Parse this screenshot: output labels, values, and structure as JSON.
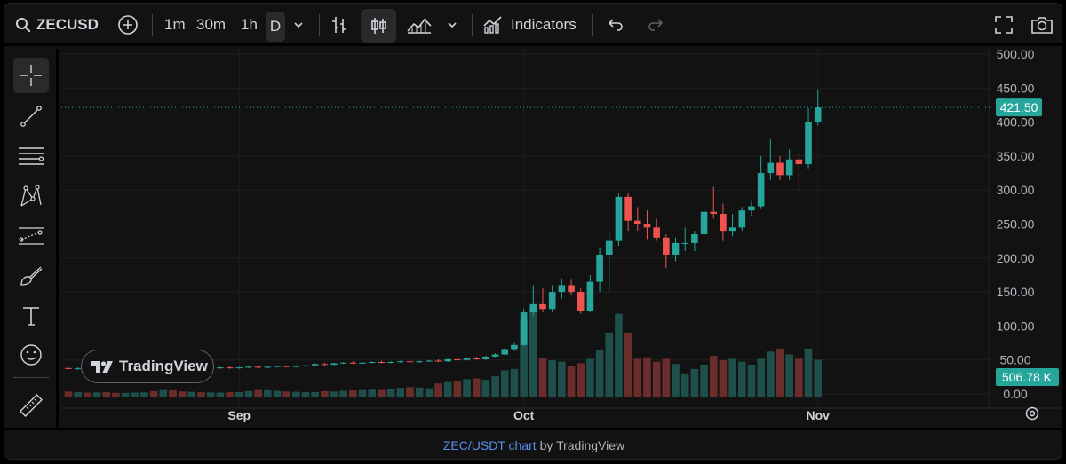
{
  "toolbar": {
    "symbol": "ZECUSD",
    "intervals": [
      "1m",
      "30m",
      "1h",
      "D"
    ],
    "indicators_label": "Indicators"
  },
  "footer": {
    "link_text": "ZEC/USDT chart",
    "by_text": "by TradingView"
  },
  "watermark": {
    "text": "TradingView"
  },
  "chart_data": {
    "type": "candlestick",
    "title": "",
    "x_tick_labels": [
      "Sep",
      "Oct",
      "Nov"
    ],
    "y_tick_labels": [
      "500.00",
      "450.00",
      "400.00",
      "350.00",
      "300.00",
      "250.00",
      "200.00",
      "150.00",
      "100.00",
      "50.00",
      "0.00"
    ],
    "ylim": [
      0,
      500
    ],
    "last_price": "421.50",
    "last_volume": "506.78 K",
    "up_color": "#26a69a",
    "down_color": "#ef5350",
    "grid": true,
    "candles": [
      {
        "date": "Aug 14",
        "o": 38,
        "h": 40,
        "l": 36,
        "c": 37
      },
      {
        "date": "Aug 15",
        "o": 37,
        "h": 39,
        "l": 35,
        "c": 38
      },
      {
        "date": "Aug 16",
        "o": 38,
        "h": 40,
        "l": 36,
        "c": 37
      },
      {
        "date": "Aug 17",
        "o": 37,
        "h": 39,
        "l": 36,
        "c": 38
      },
      {
        "date": "Aug 18",
        "o": 38,
        "h": 40,
        "l": 36,
        "c": 37
      },
      {
        "date": "Aug 19",
        "o": 37,
        "h": 39,
        "l": 35,
        "c": 36
      },
      {
        "date": "Aug 20",
        "o": 36,
        "h": 38,
        "l": 35,
        "c": 37
      },
      {
        "date": "Aug 21",
        "o": 37,
        "h": 39,
        "l": 36,
        "c": 38
      },
      {
        "date": "Aug 22",
        "o": 38,
        "h": 40,
        "l": 37,
        "c": 39
      },
      {
        "date": "Aug 23",
        "o": 39,
        "h": 40,
        "l": 37,
        "c": 38
      },
      {
        "date": "Aug 24",
        "o": 38,
        "h": 40,
        "l": 37,
        "c": 39
      },
      {
        "date": "Aug 25",
        "o": 39,
        "h": 41,
        "l": 37,
        "c": 38
      },
      {
        "date": "Aug 26",
        "o": 38,
        "h": 40,
        "l": 36,
        "c": 37
      },
      {
        "date": "Aug 27",
        "o": 37,
        "h": 39,
        "l": 36,
        "c": 38
      },
      {
        "date": "Aug 28",
        "o": 38,
        "h": 40,
        "l": 36,
        "c": 37
      },
      {
        "date": "Aug 29",
        "o": 37,
        "h": 39,
        "l": 36,
        "c": 38
      },
      {
        "date": "Aug 30",
        "o": 38,
        "h": 40,
        "l": 37,
        "c": 39
      },
      {
        "date": "Aug 31",
        "o": 39,
        "h": 41,
        "l": 37,
        "c": 38
      },
      {
        "date": "Sep 1",
        "o": 38,
        "h": 40,
        "l": 37,
        "c": 39
      },
      {
        "date": "Sep 2",
        "o": 39,
        "h": 41,
        "l": 38,
        "c": 40
      },
      {
        "date": "Sep 3",
        "o": 40,
        "h": 41,
        "l": 38,
        "c": 39
      },
      {
        "date": "Sep 4",
        "o": 39,
        "h": 41,
        "l": 38,
        "c": 40
      },
      {
        "date": "Sep 5",
        "o": 40,
        "h": 42,
        "l": 39,
        "c": 41
      },
      {
        "date": "Sep 6",
        "o": 41,
        "h": 42,
        "l": 39,
        "c": 40
      },
      {
        "date": "Sep 7",
        "o": 40,
        "h": 42,
        "l": 39,
        "c": 41
      },
      {
        "date": "Sep 8",
        "o": 41,
        "h": 43,
        "l": 40,
        "c": 42
      },
      {
        "date": "Sep 9",
        "o": 42,
        "h": 45,
        "l": 41,
        "c": 44
      },
      {
        "date": "Sep 10",
        "o": 44,
        "h": 46,
        "l": 42,
        "c": 43
      },
      {
        "date": "Sep 11",
        "o": 43,
        "h": 46,
        "l": 42,
        "c": 45
      },
      {
        "date": "Sep 12",
        "o": 45,
        "h": 47,
        "l": 44,
        "c": 46
      },
      {
        "date": "Sep 13",
        "o": 46,
        "h": 48,
        "l": 44,
        "c": 45
      },
      {
        "date": "Sep 14",
        "o": 45,
        "h": 47,
        "l": 44,
        "c": 46
      },
      {
        "date": "Sep 15",
        "o": 46,
        "h": 48,
        "l": 45,
        "c": 47
      },
      {
        "date": "Sep 16",
        "o": 47,
        "h": 49,
        "l": 45,
        "c": 46
      },
      {
        "date": "Sep 17",
        "o": 46,
        "h": 48,
        "l": 45,
        "c": 47
      },
      {
        "date": "Sep 18",
        "o": 47,
        "h": 49,
        "l": 46,
        "c": 48
      },
      {
        "date": "Sep 19",
        "o": 48,
        "h": 50,
        "l": 46,
        "c": 47
      },
      {
        "date": "Sep 20",
        "o": 47,
        "h": 49,
        "l": 46,
        "c": 48
      },
      {
        "date": "Sep 21",
        "o": 48,
        "h": 50,
        "l": 47,
        "c": 49
      },
      {
        "date": "Sep 22",
        "o": 49,
        "h": 51,
        "l": 47,
        "c": 48
      },
      {
        "date": "Sep 23",
        "o": 48,
        "h": 52,
        "l": 47,
        "c": 51
      },
      {
        "date": "Sep 24",
        "o": 51,
        "h": 53,
        "l": 49,
        "c": 50
      },
      {
        "date": "Sep 25",
        "o": 50,
        "h": 54,
        "l": 49,
        "c": 53
      },
      {
        "date": "Sep 26",
        "o": 53,
        "h": 55,
        "l": 50,
        "c": 51
      },
      {
        "date": "Sep 27",
        "o": 51,
        "h": 56,
        "l": 50,
        "c": 55
      },
      {
        "date": "Sep 28",
        "o": 55,
        "h": 60,
        "l": 54,
        "c": 58
      },
      {
        "date": "Sep 29",
        "o": 58,
        "h": 68,
        "l": 56,
        "c": 66
      },
      {
        "date": "Sep 30",
        "o": 66,
        "h": 75,
        "l": 63,
        "c": 72
      },
      {
        "date": "Oct 1",
        "o": 72,
        "h": 125,
        "l": 70,
        "c": 120
      },
      {
        "date": "Oct 2",
        "o": 120,
        "h": 160,
        "l": 115,
        "c": 132
      },
      {
        "date": "Oct 3",
        "o": 132,
        "h": 155,
        "l": 120,
        "c": 125
      },
      {
        "date": "Oct 4",
        "o": 125,
        "h": 160,
        "l": 120,
        "c": 150
      },
      {
        "date": "Oct 5",
        "o": 150,
        "h": 170,
        "l": 140,
        "c": 160
      },
      {
        "date": "Oct 6",
        "o": 160,
        "h": 168,
        "l": 145,
        "c": 150
      },
      {
        "date": "Oct 7",
        "o": 150,
        "h": 155,
        "l": 118,
        "c": 122
      },
      {
        "date": "Oct 8",
        "o": 122,
        "h": 175,
        "l": 120,
        "c": 165
      },
      {
        "date": "Oct 9",
        "o": 165,
        "h": 215,
        "l": 150,
        "c": 205
      },
      {
        "date": "Oct 10",
        "o": 205,
        "h": 240,
        "l": 150,
        "c": 225
      },
      {
        "date": "Oct 11",
        "o": 225,
        "h": 295,
        "l": 218,
        "c": 290
      },
      {
        "date": "Oct 12",
        "o": 290,
        "h": 295,
        "l": 240,
        "c": 255
      },
      {
        "date": "Oct 13",
        "o": 255,
        "h": 275,
        "l": 240,
        "c": 250
      },
      {
        "date": "Oct 14",
        "o": 250,
        "h": 270,
        "l": 228,
        "c": 245
      },
      {
        "date": "Oct 15",
        "o": 245,
        "h": 258,
        "l": 225,
        "c": 230
      },
      {
        "date": "Oct 16",
        "o": 230,
        "h": 235,
        "l": 185,
        "c": 205
      },
      {
        "date": "Oct 17",
        "o": 205,
        "h": 230,
        "l": 195,
        "c": 222
      },
      {
        "date": "Oct 18",
        "o": 222,
        "h": 245,
        "l": 210,
        "c": 222
      },
      {
        "date": "Oct 19",
        "o": 222,
        "h": 240,
        "l": 210,
        "c": 235
      },
      {
        "date": "Oct 20",
        "o": 235,
        "h": 275,
        "l": 230,
        "c": 268
      },
      {
        "date": "Oct 21",
        "o": 268,
        "h": 305,
        "l": 258,
        "c": 265
      },
      {
        "date": "Oct 22",
        "o": 265,
        "h": 280,
        "l": 225,
        "c": 240
      },
      {
        "date": "Oct 23",
        "o": 240,
        "h": 265,
        "l": 232,
        "c": 245
      },
      {
        "date": "Oct 24",
        "o": 245,
        "h": 275,
        "l": 240,
        "c": 270
      },
      {
        "date": "Oct 25",
        "o": 270,
        "h": 285,
        "l": 262,
        "c": 276
      },
      {
        "date": "Oct 26",
        "o": 276,
        "h": 350,
        "l": 272,
        "c": 325
      },
      {
        "date": "Oct 27",
        "o": 325,
        "h": 375,
        "l": 315,
        "c": 340
      },
      {
        "date": "Oct 28",
        "o": 340,
        "h": 350,
        "l": 315,
        "c": 322
      },
      {
        "date": "Oct 29",
        "o": 322,
        "h": 360,
        "l": 315,
        "c": 345
      },
      {
        "date": "Oct 30",
        "o": 345,
        "h": 355,
        "l": 300,
        "c": 338
      },
      {
        "date": "Oct 31",
        "o": 338,
        "h": 420,
        "l": 332,
        "c": 400
      },
      {
        "date": "Nov 1",
        "o": 400,
        "h": 448,
        "l": 395,
        "c": 421.5
      }
    ],
    "volumes_k": [
      70,
      62,
      55,
      58,
      60,
      52,
      50,
      55,
      58,
      75,
      90,
      85,
      70,
      65,
      60,
      58,
      55,
      60,
      62,
      75,
      90,
      88,
      80,
      70,
      65,
      60,
      62,
      75,
      70,
      80,
      85,
      90,
      95,
      90,
      110,
      120,
      130,
      125,
      115,
      180,
      200,
      210,
      240,
      250,
      230,
      280,
      360,
      380,
      1050,
      1220,
      530,
      500,
      480,
      420,
      460,
      520,
      640,
      880,
      1140,
      880,
      520,
      540,
      480,
      520,
      450,
      320,
      380,
      440,
      560,
      500,
      520,
      480,
      440,
      520,
      620,
      660,
      580,
      520,
      660,
      506.78
    ]
  }
}
